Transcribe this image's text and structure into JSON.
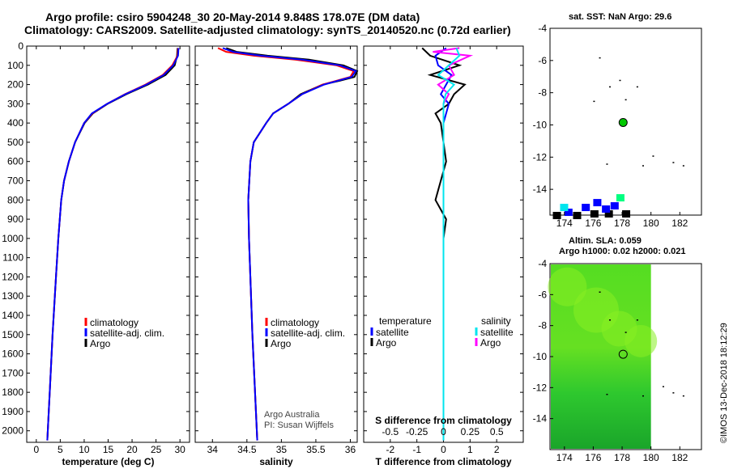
{
  "title_line1": "Argo profile: csiro 5904248_30 20-May-2014 9.848S 178.07E (DM data)",
  "title_line2": "Climatology: CARS2009. Satellite-adjusted climatology: synTS_20140520.nc (0.72d earlier)",
  "sst_title": "sat. SST: NaN Argo: 29.6",
  "altim_title1": "Altim. SLA: 0.059",
  "altim_title2": "Argo h1000: 0.02 h2000: 0.021",
  "credit1": "Argo Australia",
  "credit2": "PI: Susan Wijffels",
  "imos": "©IMOS 13-Dec-2018 18:12:29",
  "colors": {
    "clim": "#ff0000",
    "sat": "#0000ff",
    "argo": "#000000",
    "sal_sat": "#00e5ee",
    "sal_argo": "#ff00ff"
  },
  "chart_data": [
    {
      "type": "line",
      "name": "temperature",
      "xlabel": "temperature (deg C)",
      "ylabel": "",
      "xlim": [
        -2,
        32
      ],
      "ylim": [
        2060,
        0
      ],
      "xticks": [
        0,
        5,
        10,
        15,
        20,
        25,
        30
      ],
      "yticks": [
        0,
        100,
        200,
        300,
        400,
        500,
        600,
        700,
        800,
        900,
        1000,
        1100,
        1200,
        1300,
        1400,
        1500,
        1600,
        1700,
        1800,
        1900,
        2000
      ],
      "legend": [
        "climatology",
        "satellite-adj. clim.",
        "Argo"
      ],
      "series": [
        {
          "name": "climatology",
          "depth": [
            10,
            50,
            100,
            150,
            200,
            250,
            300,
            350,
            400,
            500,
            600,
            700,
            800,
            1000,
            1200,
            1500,
            1800,
            2050
          ],
          "values": [
            29.6,
            29.5,
            28.4,
            26.4,
            22.8,
            18.5,
            14.8,
            11.7,
            10.0,
            8.1,
            6.8,
            5.8,
            5.2,
            4.6,
            4.1,
            3.4,
            2.8,
            2.3
          ]
        },
        {
          "name": "satellite-adj. clim.",
          "depth": [
            10,
            50,
            100,
            150,
            200,
            250,
            300,
            350,
            400,
            500,
            600,
            700,
            800,
            1000,
            1200,
            1500,
            1800,
            2050
          ],
          "values": [
            29.7,
            29.6,
            28.6,
            26.6,
            23.0,
            18.6,
            14.8,
            11.6,
            10.0,
            8.1,
            6.8,
            5.8,
            5.2,
            4.6,
            4.1,
            3.4,
            2.8,
            2.3
          ]
        },
        {
          "name": "Argo",
          "depth": [
            10,
            50,
            100,
            150,
            200,
            250,
            300,
            350,
            400,
            500,
            600,
            700,
            800,
            1000,
            1200,
            1500,
            1800,
            2050
          ],
          "values": [
            29.5,
            29.4,
            28.9,
            27.0,
            23.3,
            18.8,
            14.9,
            11.8,
            10.1,
            8.1,
            6.8,
            5.8,
            5.2,
            4.6,
            4.1,
            3.4,
            2.8,
            2.3
          ]
        }
      ]
    },
    {
      "type": "line",
      "name": "salinity",
      "xlabel": "salinity",
      "ylabel": "",
      "xlim": [
        33.75,
        36.1
      ],
      "ylim": [
        2060,
        0
      ],
      "xticks": [
        34,
        34.5,
        35,
        35.5,
        36
      ],
      "legend": [
        "climatology",
        "satellite-adj. clim.",
        "Argo"
      ],
      "series": [
        {
          "name": "climatology",
          "depth": [
            10,
            30,
            50,
            70,
            100,
            130,
            160,
            180,
            200,
            250,
            300,
            350,
            400,
            500,
            600,
            800,
            1000,
            1500,
            2050
          ],
          "values": [
            34.08,
            34.2,
            34.6,
            35.2,
            35.8,
            36.05,
            36.0,
            35.8,
            35.6,
            35.3,
            35.1,
            34.88,
            34.78,
            34.6,
            34.55,
            34.52,
            34.53,
            34.58,
            34.65
          ]
        },
        {
          "name": "satellite-adj. clim.",
          "depth": [
            10,
            30,
            50,
            70,
            100,
            130,
            160,
            180,
            200,
            250,
            300,
            350,
            400,
            500,
            600,
            800,
            1000,
            1500,
            2050
          ],
          "values": [
            34.15,
            34.3,
            34.7,
            35.3,
            35.85,
            36.08,
            36.02,
            35.82,
            35.62,
            35.3,
            35.1,
            34.88,
            34.78,
            34.6,
            34.55,
            34.52,
            34.53,
            34.58,
            34.65
          ]
        },
        {
          "name": "Argo",
          "depth": [
            10,
            30,
            50,
            70,
            100,
            130,
            160,
            180,
            200,
            250,
            300,
            350,
            400,
            500,
            600,
            800,
            1000,
            1500,
            2050
          ],
          "values": [
            34.2,
            34.35,
            34.8,
            35.4,
            35.9,
            36.1,
            36.06,
            35.85,
            35.6,
            35.28,
            35.1,
            34.88,
            34.78,
            34.6,
            34.55,
            34.52,
            34.53,
            34.58,
            34.65
          ]
        }
      ]
    },
    {
      "type": "line",
      "name": "difference",
      "xlabel": "T difference from climatology",
      "xlabel2": "S difference from climatology",
      "xlim": [
        -3,
        3
      ],
      "ylim": [
        2060,
        0
      ],
      "xticks": [
        -2,
        -1,
        0,
        1,
        2
      ],
      "xticks_s": [
        -0.5,
        -0.25,
        0,
        0.25,
        0.5
      ],
      "xticklabels_s": [
        "-0.5",
        "-0.25",
        "0",
        "0.25",
        "0.5"
      ],
      "legend_temperature": [
        "temperature",
        "satellite",
        "Argo"
      ],
      "legend_salinity": [
        "salinity",
        "satellite",
        "Argo"
      ],
      "series": [
        {
          "name": "T satellite",
          "depth": [
            10,
            50,
            100,
            150,
            200,
            250,
            300,
            400,
            600,
            1000,
            1500,
            2000
          ],
          "values": [
            0.1,
            -0.3,
            -0.2,
            0.3,
            0.1,
            -0.1,
            0.2,
            0.0,
            0.0,
            0.0,
            0.0,
            0.0
          ]
        },
        {
          "name": "T Argo",
          "depth": [
            10,
            50,
            100,
            150,
            200,
            250,
            300,
            350,
            400,
            600,
            800,
            900,
            1000,
            1300,
            1500,
            2050
          ],
          "values": [
            -0.8,
            -0.5,
            0.6,
            -0.5,
            0.8,
            0.4,
            0.2,
            -0.3,
            -0.1,
            0.1,
            -0.3,
            0.1,
            0.0,
            0.0,
            0.0,
            0.0
          ]
        },
        {
          "name": "S satellite",
          "depth": [
            10,
            50,
            100,
            150,
            200,
            250,
            300,
            400,
            500,
            800,
            1200,
            1600,
            2050
          ],
          "values": [
            0.12,
            0.15,
            0.05,
            -0.05,
            0.1,
            0.02,
            0.0,
            0.0,
            0.0,
            0.0,
            0.0,
            0.0,
            0.0
          ]
        },
        {
          "name": "S Argo",
          "depth": [
            10,
            30,
            50,
            100,
            150,
            200,
            250,
            300,
            400,
            800,
            1500,
            2050
          ],
          "values": [
            0.15,
            -0.1,
            0.25,
            0.05,
            0.1,
            -0.05,
            0.05,
            0.0,
            0.0,
            0.0,
            0.0,
            0.0
          ]
        }
      ]
    },
    {
      "type": "scatter",
      "name": "sst-map",
      "title": "sat. SST: NaN Argo: 29.6",
      "xlim": [
        173,
        183.5
      ],
      "ylim": [
        -15.6,
        -4
      ],
      "xticks": [
        174,
        176,
        178,
        180,
        182
      ],
      "yticks": [
        -4,
        -6,
        -8,
        -10,
        -12,
        -14
      ],
      "profile_position": [
        178.07,
        -9.848
      ]
    },
    {
      "type": "heatmap",
      "name": "altimetry-map",
      "title": "Altim. SLA: 0.059",
      "xlim": [
        173,
        183.5
      ],
      "ylim": [
        -16,
        -4
      ],
      "xticks": [
        174,
        176,
        178,
        180,
        182
      ],
      "yticks": [
        -4,
        -6,
        -8,
        -10,
        -12,
        -14
      ],
      "profile_position": [
        178.07,
        -9.848
      ]
    }
  ]
}
